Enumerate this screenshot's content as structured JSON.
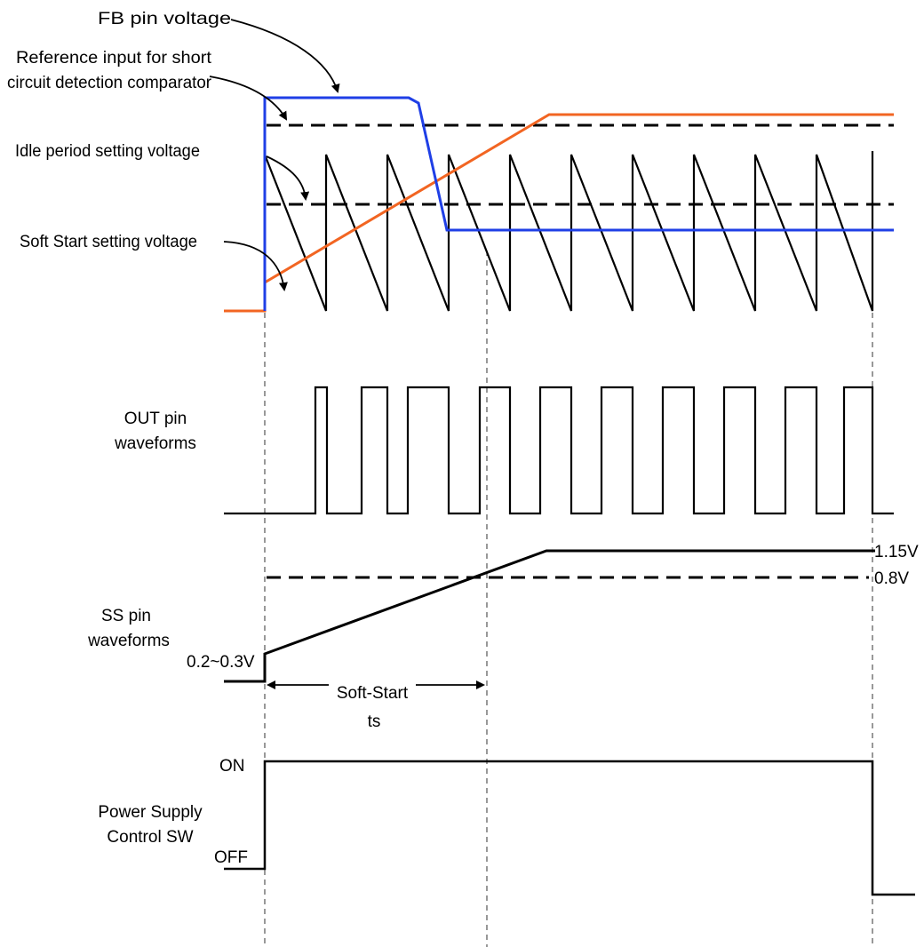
{
  "labels": {
    "fb_pin_voltage": "FB pin voltage",
    "ref_input_line1": "Reference input for short",
    "ref_input_line2": "circuit detection comparator",
    "idle_period": "Idle period setting voltage",
    "soft_start_setting": "Soft Start setting voltage",
    "out_pin_line1": "OUT pin",
    "out_pin_line2": "waveforms",
    "ss_pin_line1": "SS pin",
    "ss_pin_line2": "waveforms",
    "ss_low_value": "0.2~0.3V",
    "ss_high_value": "1.15V",
    "ss_threshold_value": "0.8V",
    "soft_start_line1": "Soft-Start",
    "soft_start_line2": "ts",
    "on_label": "ON",
    "off_label": "OFF",
    "power_supply_line1": "Power Supply",
    "power_supply_line2": "Control SW"
  },
  "colors": {
    "fb_line": "#1f3fe6",
    "soft_start_ramp": "#f26522",
    "waveform": "#000000",
    "guide_dash": "#555555"
  }
}
